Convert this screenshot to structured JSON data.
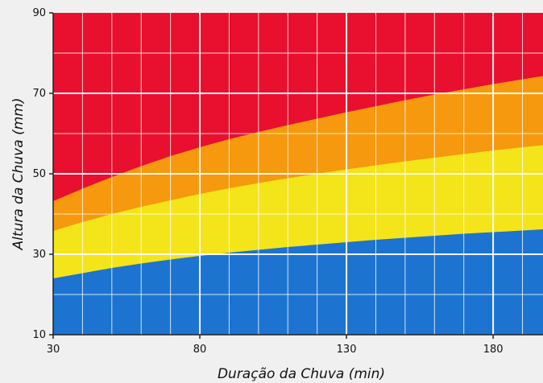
{
  "chart_data": {
    "type": "area",
    "title": "",
    "xlabel": "Duração da Chuva (min)",
    "ylabel": "Altura da Chuva (mm)",
    "xlim": [
      30,
      197
    ],
    "ylim": [
      10,
      90
    ],
    "xticks": [
      30,
      80,
      130,
      180
    ],
    "yticks": [
      10,
      30,
      50,
      70,
      90
    ],
    "grid": true,
    "x": [
      30,
      40,
      50,
      60,
      70,
      80,
      90,
      100,
      110,
      120,
      130,
      140,
      150,
      160,
      170,
      180,
      190,
      197
    ],
    "boundaries": [
      {
        "color": "#1c74d0",
        "values": [
          24.0,
          25.3,
          26.6,
          27.7,
          28.7,
          29.6,
          30.4,
          31.1,
          31.8,
          32.4,
          33.0,
          33.6,
          34.1,
          34.6,
          35.1,
          35.5,
          35.9,
          36.2
        ]
      },
      {
        "color": "#f4e41a",
        "values": [
          35.8,
          38.0,
          40.0,
          41.8,
          43.4,
          45.0,
          46.4,
          47.7,
          48.9,
          50.0,
          51.1,
          52.1,
          53.1,
          54.0,
          54.9,
          55.8,
          56.6,
          57.1
        ]
      },
      {
        "color": "#f6990e",
        "values": [
          43.2,
          46.3,
          49.2,
          51.9,
          54.4,
          56.6,
          58.6,
          60.4,
          62.1,
          63.7,
          65.3,
          66.8,
          68.3,
          69.7,
          71.0,
          72.3,
          73.5,
          74.3
        ]
      },
      {
        "color": "#e8102e",
        "values": [
          90,
          90,
          90,
          90,
          90,
          90,
          90,
          90,
          90,
          90,
          90,
          90,
          90,
          90,
          90,
          90,
          90,
          90
        ]
      }
    ]
  }
}
